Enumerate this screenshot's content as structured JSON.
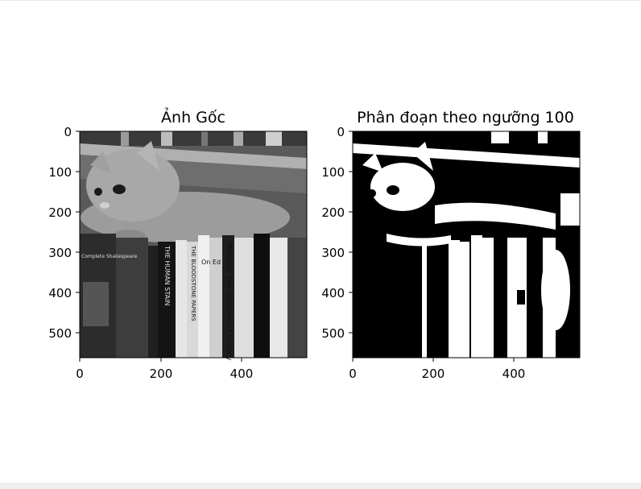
{
  "figure": {
    "left_title": "Ảnh Gốc",
    "right_title": "Phân đoạn theo ngưỡng 100",
    "y_ticks": [
      "0",
      "100",
      "200",
      "300",
      "400",
      "500"
    ],
    "x_ticks": [
      "0",
      "200",
      "400"
    ],
    "book_labels": [
      "MARCUS The Question of History",
      "THE HUMAN STAIN",
      "THE BLOODSTONE PAPERS",
      "On Ed",
      "Complete Shakespeare"
    ]
  }
}
